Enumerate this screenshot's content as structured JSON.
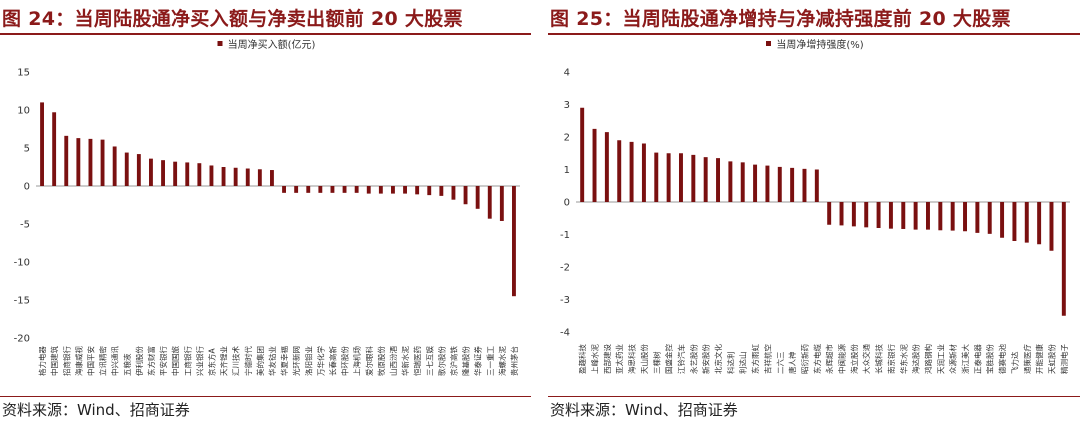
{
  "colors": {
    "bar": "#7a1010",
    "accent": "#8b1a1a",
    "axis": "#999999"
  },
  "panels": [
    {
      "title": "图 24：当周陆股通净买入额与净卖出额前 20 大股票",
      "source": "资料来源：Wind、招商证券"
    },
    {
      "title": "图 25：当周陆股通净增持与净减持强度前 20 大股票",
      "source": "资料来源：Wind、招商证券"
    }
  ],
  "chart_data": [
    {
      "type": "bar",
      "legend": "当周净买入额(亿元)",
      "legend_position": "top-center",
      "ylim": [
        -20,
        15
      ],
      "yticks": [
        15,
        10,
        5,
        0,
        -5,
        -10,
        -15,
        -20
      ],
      "grid": false,
      "categories": [
        "格力电器",
        "中国建筑",
        "招商银行",
        "海康威视",
        "中国平安",
        "立讯精密",
        "中兴通讯",
        "五粮液",
        "伊利股份",
        "东方财富",
        "平安银行",
        "中国国旅",
        "工商银行",
        "兴业银行",
        "京东方A",
        "天齐锂业",
        "汇川技术",
        "宁德时代",
        "美的集团",
        "华友钴业",
        "华夏幸福",
        "光环新网",
        "洛阳钼业",
        "万华化学",
        "长春高新",
        "中环股份",
        "上海机场",
        "爱尔眼科",
        "牧原股份",
        "山西汾酒",
        "华新水泥",
        "恒瑞医药",
        "三七互娱",
        "歌尔股份",
        "京沪高铁",
        "隆基股份",
        "华泰证券",
        "三一重工",
        "海螺水泥",
        "贵州茅台"
      ],
      "values": [
        11.0,
        9.7,
        6.6,
        6.3,
        6.2,
        6.1,
        5.2,
        4.4,
        4.2,
        3.6,
        3.4,
        3.2,
        3.1,
        3.0,
        2.7,
        2.5,
        2.4,
        2.3,
        2.2,
        2.1,
        -0.9,
        -0.9,
        -0.9,
        -0.9,
        -0.9,
        -0.9,
        -0.9,
        -1.0,
        -1.0,
        -1.0,
        -1.0,
        -1.1,
        -1.2,
        -1.3,
        -1.8,
        -2.4,
        -3.0,
        -4.3,
        -4.6,
        -14.5
      ]
    },
    {
      "type": "bar",
      "legend": "当周净增持强度(%)",
      "legend_position": "top-center",
      "ylim": [
        -4,
        4
      ],
      "yticks": [
        4,
        3,
        2,
        1,
        0,
        -1,
        -2,
        -3,
        -4
      ],
      "grid": false,
      "categories": [
        "盈趣科技",
        "上峰水泥",
        "西部建设",
        "亚太药业",
        "海思科技",
        "天山股份",
        "三棵树",
        "国盛金控",
        "江铃汽车",
        "永艺股份",
        "新安股份",
        "北京文化",
        "科达利",
        "利达山",
        "东方雨虹",
        "吉祥航空",
        "二六三",
        "唐人神",
        "昭衍新药",
        "东方电缆",
        "永辉超市",
        "中闽能源",
        "海立股份",
        "大众交通",
        "长城科技",
        "南京银行",
        "华东水泥",
        "海达股份",
        "鸿路钢构",
        "天润工业",
        "众源新材",
        "浙江美大",
        "正泰电器",
        "宝胜股份",
        "德赛电池",
        "飞力达",
        "通策医疗",
        "开能健康",
        "天虹股份",
        "精测电子"
      ],
      "values": [
        2.9,
        2.25,
        2.15,
        1.9,
        1.85,
        1.8,
        1.52,
        1.5,
        1.5,
        1.45,
        1.38,
        1.35,
        1.25,
        1.22,
        1.15,
        1.12,
        1.08,
        1.05,
        1.02,
        1.0,
        -0.7,
        -0.72,
        -0.75,
        -0.78,
        -0.8,
        -0.82,
        -0.83,
        -0.85,
        -0.85,
        -0.87,
        -0.88,
        -0.9,
        -0.95,
        -0.98,
        -1.1,
        -1.2,
        -1.25,
        -1.3,
        -1.5,
        -3.5
      ]
    }
  ]
}
